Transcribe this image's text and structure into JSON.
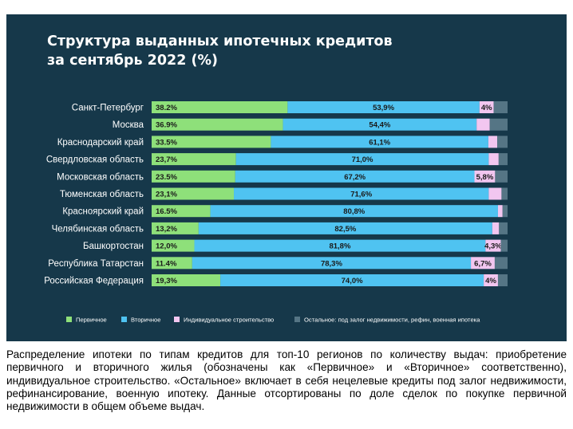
{
  "title_line1": "Структура выданных ипотечных кредитов",
  "title_line2": "за сентябрь 2022 (%)",
  "caption": "Распределение ипотеки по типам кредитов для топ-10 регионов по количеству выдач: приобретение первичного и вторичного жилья (обозначены как «Первичное» и «Вторичное» соответственно), индивидуальное строительство. «Остальное» включает в себя нецелевые кредиты под залог недвижимости, рефинансирование, военную ипотеку. Данные отсортированы по доле сделок по покупке первичной недвижимости в общем объеме выдач.",
  "chart_data": {
    "type": "bar",
    "orientation": "horizontal",
    "stacked": true,
    "percent_stacked": true,
    "title": "Структура выданных ипотечных кредитов за сентябрь 2022 (%)",
    "categories": [
      "Санкт-Петербург",
      "Москва",
      "Краснодарский край",
      "Свердловская область",
      "Московская область",
      "Тюменская область",
      "Красноярский край",
      "Челябинская область",
      "Башкортостан",
      "Республика Татарстан",
      "Российская Федерация"
    ],
    "series": [
      {
        "name": "Первичное",
        "color": "#8ee07a",
        "values": [
          38.2,
          36.9,
          33.5,
          23.7,
          23.5,
          23.1,
          16.5,
          13.2,
          12.0,
          11.4,
          19.3
        ],
        "labels": [
          "38.2%",
          "36.9%",
          "33.5%",
          "23,7%",
          "23.5%",
          "23,1%",
          "16.5%",
          "13,2%",
          "12,0%",
          "11.4%",
          "19,3%"
        ]
      },
      {
        "name": "Вторичное",
        "color": "#4fc3f1",
        "values": [
          53.9,
          54.4,
          61.1,
          71.0,
          67.2,
          71.6,
          80.8,
          82.5,
          81.8,
          78.3,
          74.0
        ],
        "labels": [
          "53,9%",
          "54,4%",
          "61,1%",
          "71,0%",
          "67,2%",
          "71,6%",
          "80,8%",
          "82,5%",
          "81,8%",
          "78,3%",
          "74,0%"
        ]
      },
      {
        "name": "Индивидуальное строительство",
        "color": "#f2c6f0",
        "values": [
          4.0,
          3.7,
          2.5,
          2.8,
          5.8,
          3.6,
          1.3,
          1.9,
          4.3,
          6.7,
          4.0
        ],
        "labels": [
          "4%",
          "",
          "",
          "",
          "5,8%",
          "",
          "",
          "",
          "4,3%",
          "6,7%",
          "4%"
        ]
      },
      {
        "name": "Остальное: под залог недвижимости, рефин, военная ипотека",
        "color": "#557585",
        "values": [
          3.9,
          5.0,
          2.9,
          2.5,
          3.5,
          1.7,
          1.4,
          2.4,
          1.9,
          3.6,
          2.7
        ],
        "labels": [
          "",
          "",
          "",
          "",
          "",
          "",
          "",
          "",
          "",
          "",
          ""
        ]
      }
    ],
    "xlim": [
      0,
      100
    ],
    "legend_position": "bottom",
    "grid": false
  }
}
